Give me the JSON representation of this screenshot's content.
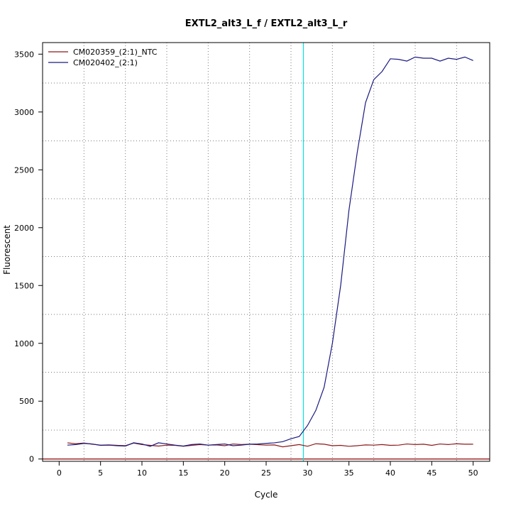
{
  "chart_data": {
    "type": "line",
    "title": "EXTL2_alt3_L_f / EXTL2_alt3_L_r",
    "xlabel": "Cycle",
    "ylabel": "Fluorescent",
    "xlim": [
      -2,
      52
    ],
    "ylim": [
      -20,
      3600
    ],
    "x_ticks": [
      0,
      5,
      10,
      15,
      20,
      25,
      30,
      35,
      40,
      45,
      50
    ],
    "y_ticks": [
      0,
      500,
      1000,
      1500,
      2000,
      2500,
      3000,
      3500
    ],
    "x_minor_grid": [
      3,
      8,
      13,
      18,
      23,
      28,
      33,
      38,
      43,
      48
    ],
    "y_minor_grid": [
      250,
      750,
      1250,
      1750,
      2250,
      2750,
      3250
    ],
    "grid": true,
    "threshold": {
      "x": 29.5,
      "color": "#00e5e5"
    },
    "baseline": {
      "y": 0,
      "color": "#8b0000"
    },
    "legend_position": "top-left",
    "x": [
      1,
      2,
      3,
      4,
      5,
      6,
      7,
      8,
      9,
      10,
      11,
      12,
      13,
      14,
      15,
      16,
      17,
      18,
      19,
      20,
      21,
      22,
      23,
      24,
      25,
      26,
      27,
      28,
      29,
      30,
      31,
      32,
      33,
      34,
      35,
      36,
      37,
      38,
      39,
      40,
      41,
      42,
      43,
      44,
      45,
      46,
      47,
      48,
      49,
      50
    ],
    "series": [
      {
        "name": "CM020359_(2:1)_NTC",
        "color": "#8b1a1a",
        "values": [
          140,
          132,
          138,
          128,
          120,
          122,
          118,
          115,
          138,
          125,
          118,
          112,
          120,
          118,
          110,
          118,
          125,
          120,
          122,
          115,
          130,
          125,
          128,
          124,
          120,
          122,
          105,
          115,
          125,
          110,
          132,
          128,
          115,
          118,
          110,
          115,
          122,
          120,
          125,
          118,
          120,
          130,
          125,
          128,
          118,
          130,
          125,
          132,
          128,
          128
        ]
      },
      {
        "name": "CM020402_(2:1)",
        "color": "#1a1a80",
        "values": [
          120,
          125,
          135,
          130,
          118,
          120,
          115,
          112,
          140,
          130,
          110,
          140,
          130,
          120,
          112,
          125,
          130,
          120,
          125,
          130,
          115,
          120,
          128,
          130,
          135,
          140,
          150,
          175,
          195,
          290,
          420,
          620,
          1000,
          1500,
          2150,
          2650,
          3080,
          3280,
          3350,
          3460,
          3455,
          3440,
          3475,
          3465,
          3465,
          3440,
          3465,
          3455,
          3475,
          3445
        ]
      }
    ]
  }
}
